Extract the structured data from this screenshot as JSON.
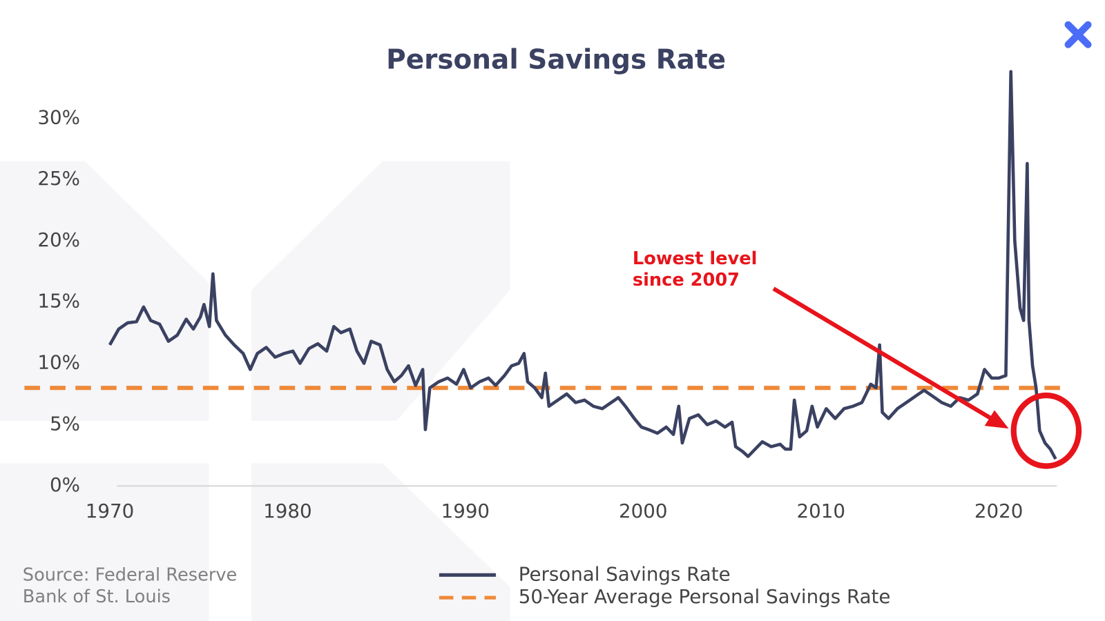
{
  "chart_data": {
    "type": "line",
    "title": "Personal Savings Rate",
    "source": [
      "Source: Federal Reserve",
      "Bank of St. Louis"
    ],
    "annotation": [
      "Lowest level",
      "since 2007"
    ],
    "xlim": [
      1965,
      2024
    ],
    "xticks": [
      1970,
      1980,
      1990,
      2000,
      2010,
      2020
    ],
    "ylim": [
      0,
      34
    ],
    "yticks": [
      {
        "value": 0,
        "label": "0%"
      },
      {
        "value": 5,
        "label": "5%"
      },
      {
        "value": 10,
        "label": "10%"
      },
      {
        "value": 15,
        "label": "15%"
      },
      {
        "value": 20,
        "label": "20%"
      },
      {
        "value": 25,
        "label": "25%"
      },
      {
        "value": 30,
        "label": "30%"
      }
    ],
    "series": [
      {
        "name": "Personal Savings Rate",
        "color": "#3b4161",
        "style": "solid",
        "x": [
          1970,
          1970.5,
          1971,
          1971.5,
          1971.9,
          1972.3,
          1972.8,
          1973.3,
          1973.8,
          1974.3,
          1974.7,
          1975.1,
          1975.3,
          1975.6,
          1975.8,
          1976.0,
          1976.5,
          1977,
          1977.5,
          1977.9,
          1978.3,
          1978.8,
          1979.3,
          1979.8,
          1980.3,
          1980.7,
          1981.2,
          1981.7,
          1982.2,
          1982.6,
          1983.0,
          1983.5,
          1983.9,
          1984.3,
          1984.7,
          1985.2,
          1985.6,
          1986.0,
          1986.4,
          1986.8,
          1987.2,
          1987.6,
          1987.75,
          1988.0,
          1988.5,
          1989.0,
          1989.5,
          1989.9,
          1990.3,
          1990.8,
          1991.3,
          1991.7,
          1992.2,
          1992.6,
          1993.0,
          1993.3,
          1993.5,
          1993.9,
          1994.3,
          1994.5,
          1994.7,
          1995.2,
          1995.7,
          1996.2,
          1996.7,
          1997.2,
          1997.7,
          1998.2,
          1998.6,
          1999.0,
          1999.5,
          1999.9,
          2000.3,
          2000.8,
          2001.3,
          2001.7,
          2002.0,
          2002.2,
          2002.6,
          2003.1,
          2003.6,
          2004.1,
          2004.6,
          2005.0,
          2005.2,
          2005.6,
          2005.9,
          2006.3,
          2006.7,
          2007.2,
          2007.7,
          2008.0,
          2008.3,
          2008.5,
          2008.8,
          2009.2,
          2009.5,
          2009.8,
          2010.3,
          2010.8,
          2011.3,
          2011.8,
          2012.3,
          2012.8,
          2013.1,
          2013.3,
          2013.45,
          2013.8,
          2014.3,
          2014.8,
          2015.3,
          2015.8,
          2016.3,
          2016.8,
          2017.3,
          2017.8,
          2018.3,
          2018.8,
          2019.2,
          2019.6,
          2020.0,
          2020.4,
          2020.68,
          2020.9,
          2021.2,
          2021.4,
          2021.6,
          2021.7,
          2021.9,
          2022.1,
          2022.3,
          2022.6,
          2022.9,
          2023.2
        ],
        "values": [
          11.5,
          12.8,
          13.3,
          13.4,
          14.6,
          13.5,
          13.2,
          11.8,
          12.3,
          13.6,
          12.8,
          13.8,
          14.8,
          13.0,
          17.3,
          13.5,
          12.3,
          11.5,
          10.8,
          9.5,
          10.8,
          11.3,
          10.5,
          10.8,
          11.0,
          10.0,
          11.2,
          11.6,
          11.0,
          13.0,
          12.5,
          12.8,
          11.0,
          10.0,
          11.8,
          11.5,
          9.5,
          8.5,
          9.0,
          9.8,
          8.2,
          9.5,
          4.6,
          8.0,
          8.5,
          8.8,
          8.3,
          9.5,
          8.0,
          8.5,
          8.8,
          8.2,
          9.0,
          9.8,
          10.0,
          10.8,
          8.5,
          8.0,
          7.2,
          9.2,
          6.5,
          7.0,
          7.5,
          6.8,
          7.0,
          6.5,
          6.3,
          6.8,
          7.2,
          6.5,
          5.5,
          4.8,
          4.6,
          4.3,
          4.8,
          4.2,
          6.5,
          3.5,
          5.5,
          5.8,
          5.0,
          5.3,
          4.8,
          5.2,
          3.2,
          2.8,
          2.4,
          3.0,
          3.6,
          3.2,
          3.4,
          3.0,
          3.0,
          7.0,
          4.0,
          4.5,
          6.5,
          4.8,
          6.3,
          5.5,
          6.3,
          6.5,
          6.8,
          8.3,
          8.0,
          11.5,
          6.0,
          5.5,
          6.3,
          6.8,
          7.3,
          7.8,
          7.3,
          6.8,
          6.5,
          7.2,
          7.0,
          7.5,
          9.5,
          8.8,
          8.8,
          9.0,
          33.8,
          20.0,
          14.5,
          13.5,
          26.3,
          13.5,
          9.8,
          8.0,
          4.5,
          3.5,
          3.0,
          2.2
        ]
      },
      {
        "name": "50-Year Average Personal Savings Rate",
        "color": "#ee8a3a",
        "style": "dashed",
        "x": [
          1965.2,
          2023.7
        ],
        "values": [
          8.0,
          8.0
        ]
      }
    ]
  }
}
